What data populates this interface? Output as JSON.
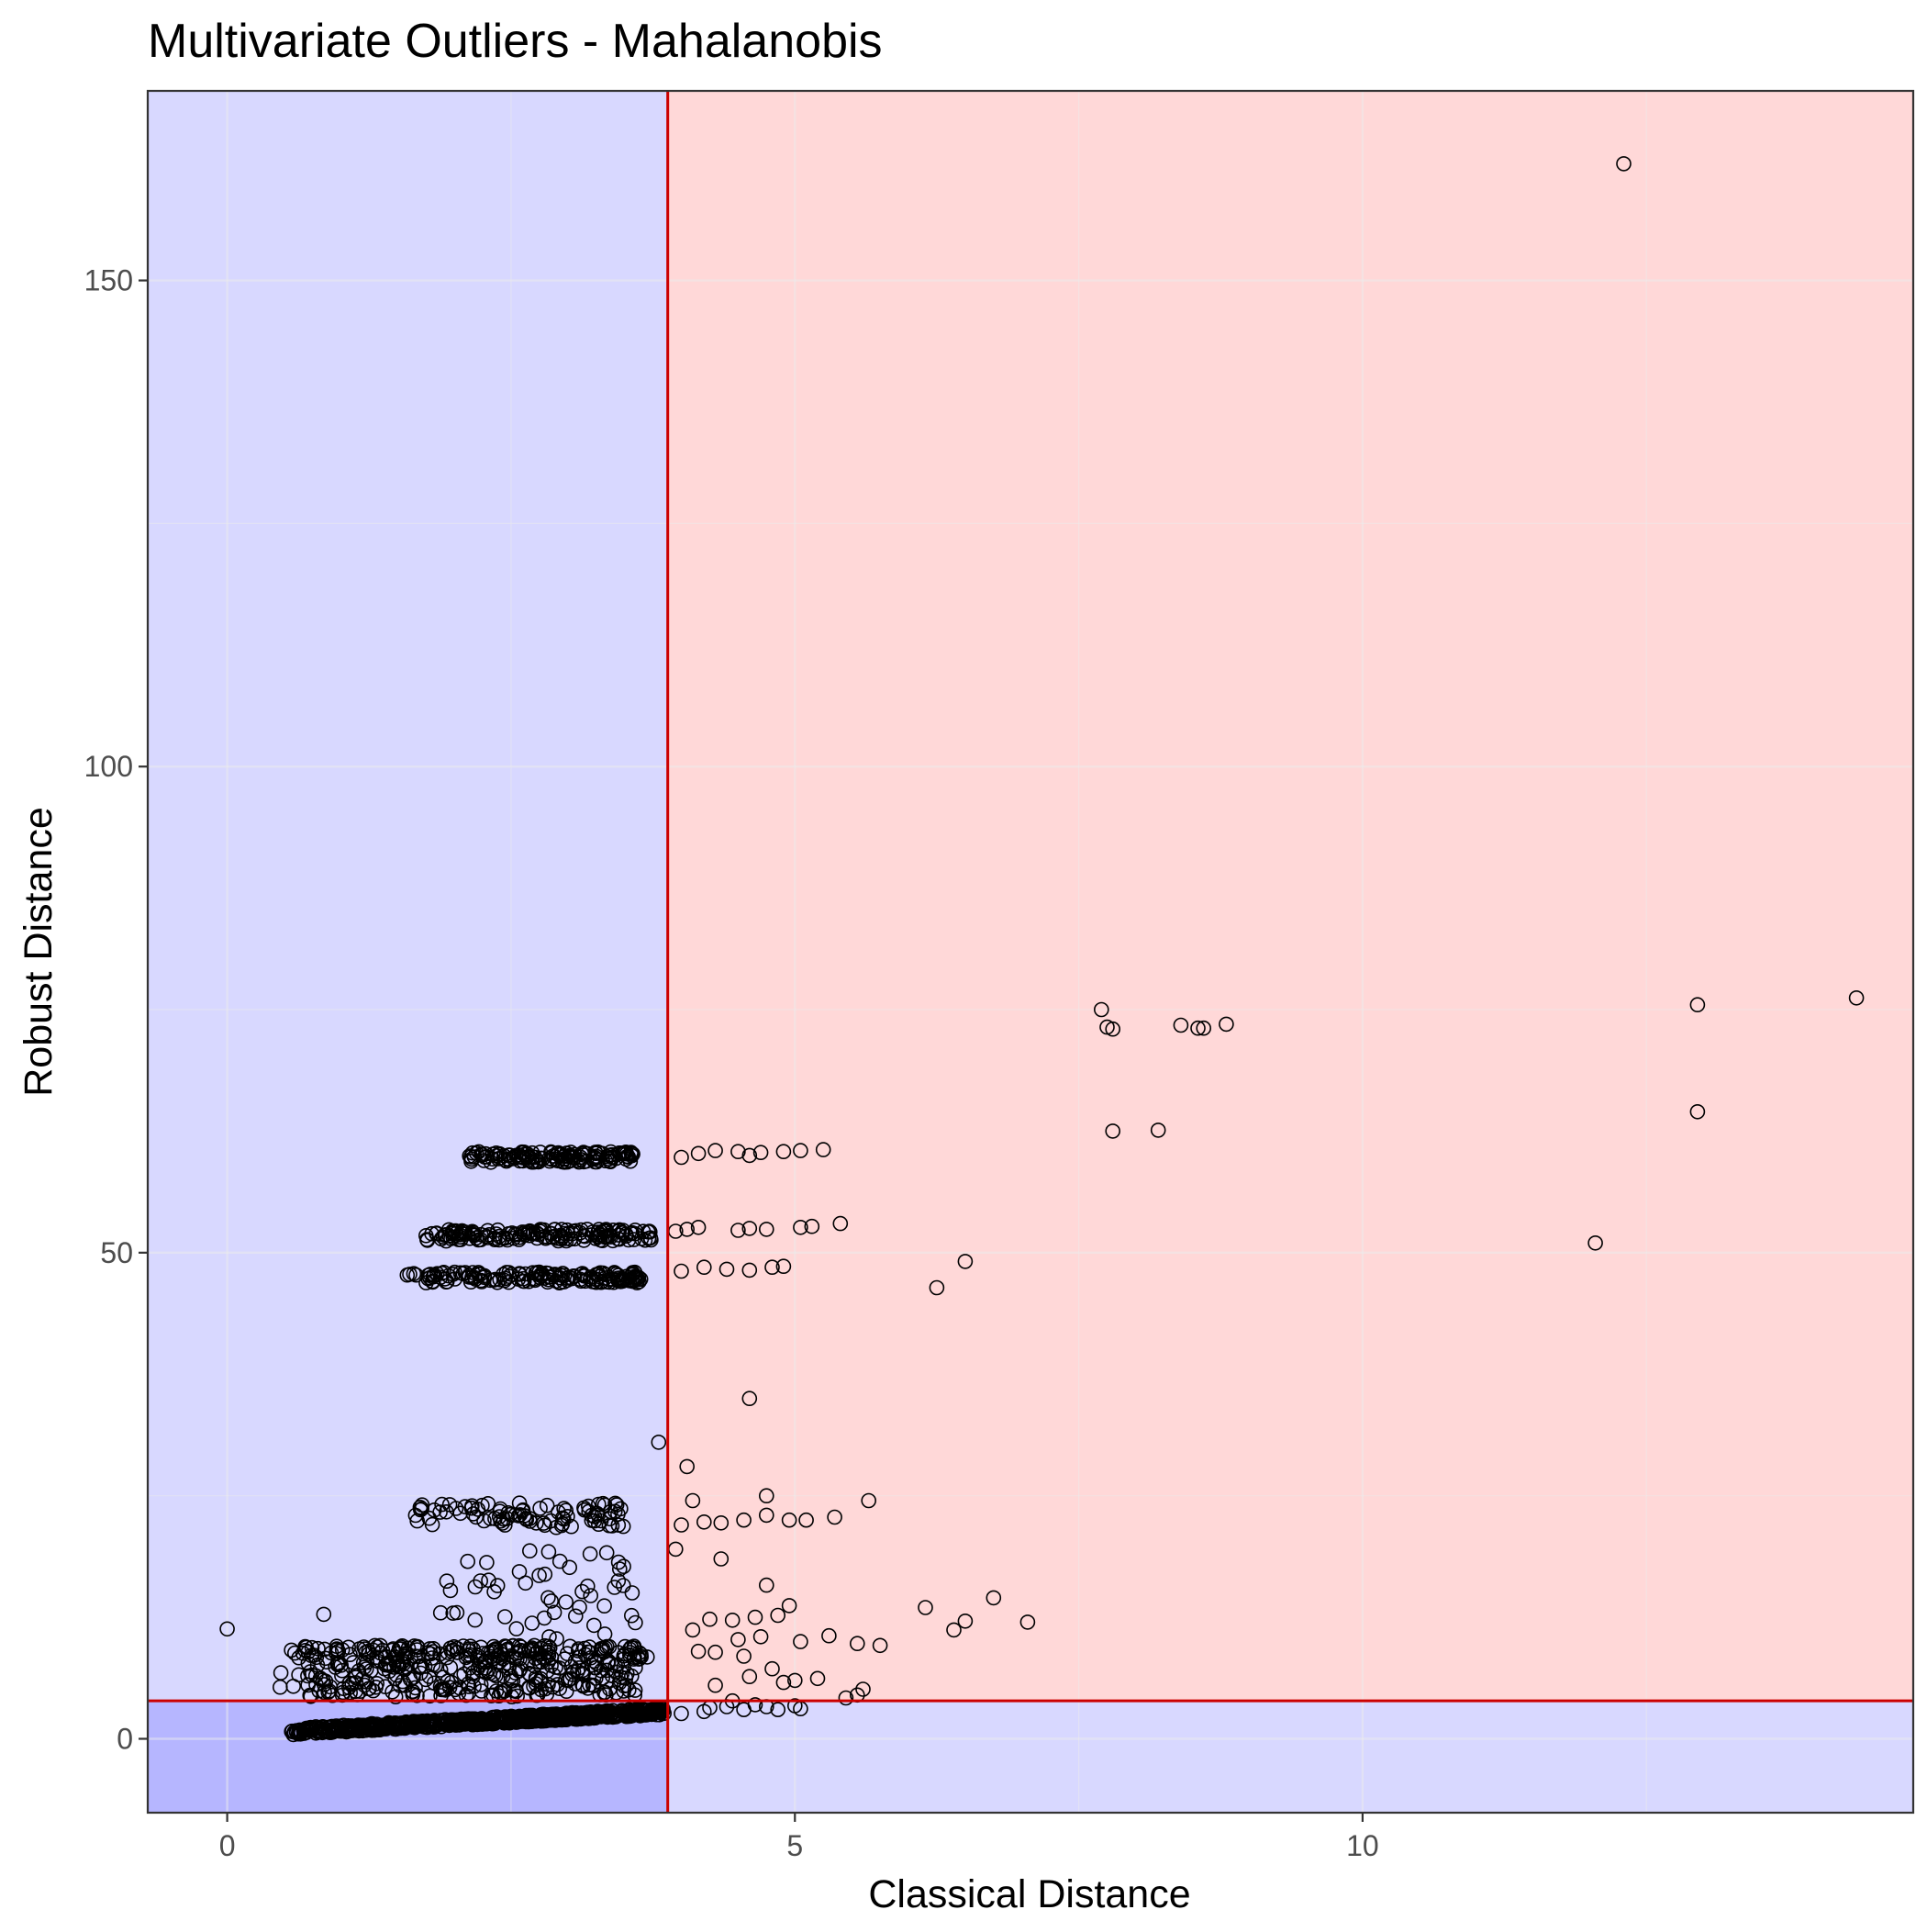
{
  "chart_data": {
    "type": "scatter",
    "title": "Multivariate Outliers - Mahalanobis",
    "xlabel": "Classical Distance",
    "ylabel": "Robust Distance",
    "xlim": [
      -0.7,
      14.85
    ],
    "ylim": [
      -7.6,
      169.5
    ],
    "xticks": [
      0,
      5,
      10
    ],
    "yticks": [
      0,
      50,
      100,
      150
    ],
    "grid": true,
    "legend": "none",
    "cutoff": {
      "x": 3.88,
      "y": 3.9
    },
    "colors": {
      "normal_region": "#d8d8ff",
      "both_normal_region": "#b6b6ff",
      "outlier_region": "#ffd8d8",
      "cutoff_line": "#cc0000",
      "point_stroke": "#000000",
      "panel_border": "#333333"
    },
    "clusters": [
      {
        "xmin": 0.55,
        "xmax": 3.85,
        "ymin": 0.4,
        "ymax": 3.2,
        "n": 800,
        "trend": true
      },
      {
        "xmin": 2.1,
        "xmax": 3.6,
        "ymin": 59.3,
        "ymax": 60.4,
        "n": 140
      },
      {
        "xmin": 1.75,
        "xmax": 3.75,
        "ymin": 51.2,
        "ymax": 52.4,
        "n": 160
      },
      {
        "xmin": 1.55,
        "xmax": 3.65,
        "ymin": 46.9,
        "ymax": 48.0,
        "n": 160
      },
      {
        "xmin": 1.6,
        "xmax": 3.5,
        "ymin": 21.7,
        "ymax": 24.3,
        "n": 90
      },
      {
        "xmin": 0.55,
        "xmax": 3.7,
        "ymin": 8.2,
        "ymax": 9.6,
        "n": 180
      },
      {
        "xmin": 0.45,
        "xmax": 3.6,
        "ymin": 4.3,
        "ymax": 8.0,
        "n": 260
      },
      {
        "xmin": 1.8,
        "xmax": 3.6,
        "ymin": 10.0,
        "ymax": 19.5,
        "n": 50
      }
    ],
    "points": [
      [
        0.0,
        11.3
      ],
      [
        0.85,
        12.8
      ],
      [
        3.8,
        30.5
      ],
      [
        4.05,
        28.0
      ],
      [
        4.6,
        35.0
      ],
      [
        4.75,
        15.8
      ],
      [
        4.35,
        18.5
      ],
      [
        4.0,
        22.0
      ],
      [
        4.1,
        24.5
      ],
      [
        3.95,
        19.5
      ],
      [
        4.55,
        22.5
      ],
      [
        4.75,
        23.0
      ],
      [
        4.95,
        22.5
      ],
      [
        5.1,
        22.5
      ],
      [
        5.35,
        22.8
      ],
      [
        5.65,
        24.5
      ],
      [
        4.75,
        25.0
      ],
      [
        4.35,
        22.2
      ],
      [
        4.2,
        22.3
      ],
      [
        4.15,
        60.2
      ],
      [
        4.3,
        60.5
      ],
      [
        4.5,
        60.4
      ],
      [
        4.7,
        60.3
      ],
      [
        4.9,
        60.4
      ],
      [
        5.05,
        60.5
      ],
      [
        5.25,
        60.6
      ],
      [
        4.0,
        59.8
      ],
      [
        4.6,
        60.0
      ],
      [
        4.05,
        52.4
      ],
      [
        4.15,
        52.6
      ],
      [
        4.5,
        52.3
      ],
      [
        4.75,
        52.4
      ],
      [
        5.05,
        52.6
      ],
      [
        5.15,
        52.7
      ],
      [
        5.4,
        53.0
      ],
      [
        3.95,
        52.2
      ],
      [
        4.6,
        52.5
      ],
      [
        4.2,
        48.5
      ],
      [
        4.4,
        48.3
      ],
      [
        4.6,
        48.2
      ],
      [
        4.8,
        48.5
      ],
      [
        4.0,
        48.1
      ],
      [
        4.9,
        48.6
      ],
      [
        6.25,
        46.4
      ],
      [
        6.5,
        49.1
      ],
      [
        7.7,
        75.0
      ],
      [
        7.75,
        73.2
      ],
      [
        7.8,
        73.0
      ],
      [
        7.8,
        62.5
      ],
      [
        8.2,
        62.6
      ],
      [
        8.4,
        73.4
      ],
      [
        8.55,
        73.1
      ],
      [
        8.6,
        73.1
      ],
      [
        8.8,
        73.5
      ],
      [
        12.3,
        162.0
      ],
      [
        12.95,
        75.5
      ],
      [
        12.95,
        64.5
      ],
      [
        12.05,
        51.0
      ],
      [
        14.35,
        76.2
      ],
      [
        6.15,
        13.5
      ],
      [
        6.5,
        12.1
      ],
      [
        6.4,
        11.2
      ],
      [
        6.75,
        14.5
      ],
      [
        7.05,
        12.0
      ],
      [
        4.25,
        12.3
      ],
      [
        4.45,
        12.2
      ],
      [
        4.65,
        12.5
      ],
      [
        4.85,
        12.7
      ],
      [
        4.1,
        11.2
      ],
      [
        4.95,
        13.7
      ],
      [
        4.5,
        10.2
      ],
      [
        4.7,
        10.5
      ],
      [
        5.05,
        10.0
      ],
      [
        5.3,
        10.6
      ],
      [
        5.55,
        9.8
      ],
      [
        5.75,
        9.6
      ],
      [
        4.3,
        8.9
      ],
      [
        4.55,
        8.5
      ],
      [
        4.8,
        7.2
      ],
      [
        5.0,
        6.0
      ],
      [
        5.2,
        6.2
      ],
      [
        4.9,
        5.8
      ],
      [
        4.6,
        6.4
      ],
      [
        4.15,
        9.0
      ],
      [
        5.55,
        4.5
      ],
      [
        5.6,
        5.1
      ],
      [
        5.45,
        4.2
      ],
      [
        4.45,
        3.9
      ],
      [
        4.65,
        3.5
      ],
      [
        4.25,
        3.2
      ],
      [
        4.85,
        3.0
      ],
      [
        5.05,
        3.1
      ],
      [
        4.4,
        3.3
      ],
      [
        4.0,
        2.6
      ],
      [
        4.2,
        2.8
      ],
      [
        4.55,
        3.0
      ],
      [
        4.75,
        3.3
      ],
      [
        5.0,
        3.4
      ],
      [
        4.3,
        5.5
      ]
    ]
  }
}
